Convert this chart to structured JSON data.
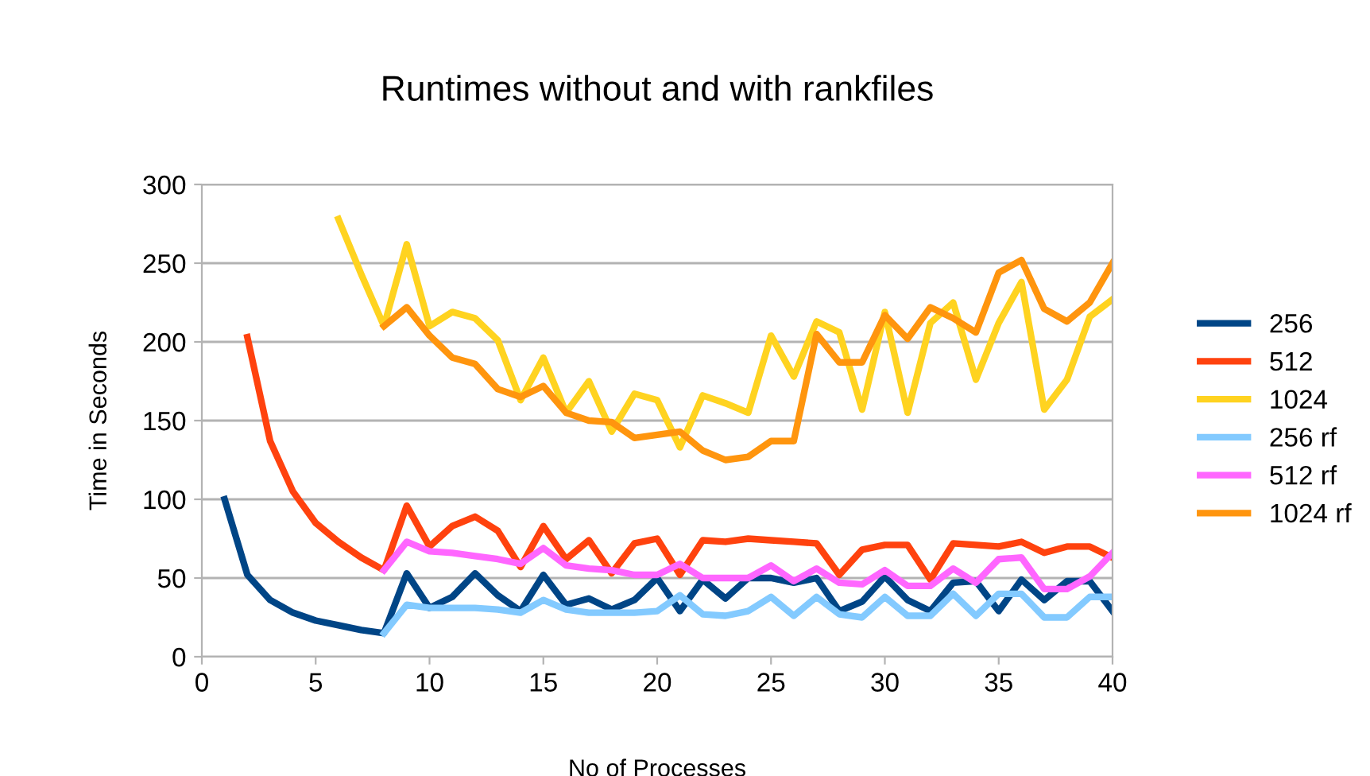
{
  "chart_data": {
    "type": "line",
    "title": "Runtimes without and with rankfiles",
    "xlabel": "No of Processes",
    "ylabel": "Time in Seconds",
    "x": [
      1,
      2,
      3,
      4,
      5,
      6,
      7,
      8,
      9,
      10,
      11,
      12,
      13,
      14,
      15,
      16,
      17,
      18,
      19,
      20,
      21,
      22,
      23,
      24,
      25,
      26,
      27,
      28,
      29,
      30,
      31,
      32,
      33,
      34,
      35,
      36,
      37,
      38,
      39,
      40
    ],
    "series": [
      {
        "name": "256",
        "color": "#004586",
        "values": [
          100,
          52,
          36,
          28,
          23,
          20,
          17,
          15,
          53,
          31,
          38,
          53,
          39,
          29,
          52,
          33,
          37,
          30,
          36,
          50,
          29,
          49,
          37,
          50,
          50,
          47,
          50,
          29,
          35,
          51,
          36,
          29,
          47,
          48,
          29,
          49,
          36,
          48,
          48,
          29
        ]
      },
      {
        "name": "512",
        "color": "#ff420e",
        "values": [
          null,
          203,
          137,
          105,
          85,
          73,
          63,
          55,
          96,
          70,
          83,
          89,
          80,
          57,
          83,
          62,
          74,
          53,
          72,
          75,
          52,
          74,
          73,
          75,
          74,
          73,
          72,
          52,
          68,
          71,
          71,
          49,
          72,
          71,
          70,
          73,
          66,
          70,
          70,
          63
        ]
      },
      {
        "name": "1024",
        "color": "#ffd320",
        "values": [
          null,
          null,
          null,
          null,
          null,
          278,
          243,
          210,
          262,
          210,
          219,
          215,
          201,
          163,
          190,
          155,
          175,
          143,
          167,
          163,
          133,
          166,
          161,
          155,
          204,
          178,
          213,
          206,
          157,
          219,
          155,
          212,
          225,
          176,
          212,
          238,
          157,
          176,
          216,
          227
        ]
      },
      {
        "name": "256 rf",
        "color": "#83caff",
        "values": [
          null,
          null,
          null,
          null,
          null,
          null,
          null,
          15,
          33,
          31,
          31,
          31,
          30,
          28,
          36,
          30,
          28,
          28,
          28,
          29,
          39,
          27,
          26,
          29,
          38,
          26,
          38,
          27,
          25,
          38,
          26,
          26,
          40,
          26,
          40,
          40,
          25,
          25,
          38,
          38
        ]
      },
      {
        "name": "512 rf",
        "color": "#ff66ff",
        "values": [
          null,
          null,
          null,
          null,
          null,
          null,
          null,
          55,
          73,
          67,
          66,
          64,
          62,
          59,
          69,
          58,
          56,
          55,
          52,
          52,
          59,
          50,
          50,
          50,
          58,
          48,
          56,
          47,
          46,
          55,
          45,
          45,
          56,
          47,
          62,
          63,
          43,
          43,
          51,
          66
        ]
      },
      {
        "name": "1024 rf",
        "color": "#ff950e",
        "values": [
          null,
          null,
          null,
          null,
          null,
          null,
          null,
          210,
          222,
          204,
          190,
          186,
          170,
          165,
          172,
          155,
          150,
          149,
          139,
          141,
          143,
          131,
          125,
          127,
          137,
          137,
          205,
          187,
          187,
          217,
          202,
          222,
          215,
          206,
          244,
          252,
          221,
          213,
          225,
          250
        ]
      }
    ],
    "xlim": [
      0,
      40
    ],
    "xticks": [
      0,
      5,
      10,
      15,
      20,
      25,
      30,
      35,
      40
    ],
    "ylim": [
      0,
      300
    ],
    "yticks": [
      0,
      50,
      100,
      150,
      200,
      250,
      300
    ],
    "grid": "y",
    "legend": "right",
    "marker": "none",
    "line_style": "solid"
  }
}
